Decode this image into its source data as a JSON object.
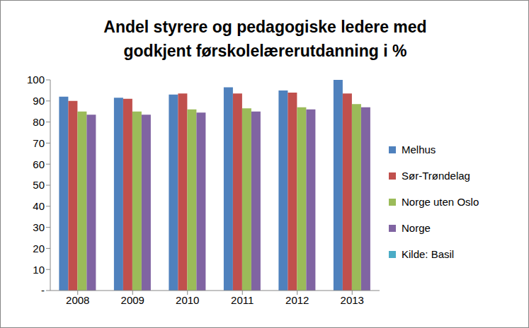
{
  "chart_data": {
    "type": "bar",
    "title": "Andel styrere og pedagogiske ledere med godkjent førskolelærerutdanning i %",
    "categories": [
      "2008",
      "2009",
      "2010",
      "2011",
      "2012",
      "2013"
    ],
    "series": [
      {
        "name": "Melhus",
        "color": "#4f81bd",
        "values": [
          92,
          91.5,
          93,
          96.5,
          95,
          100
        ]
      },
      {
        "name": "Sør-Trøndelag",
        "color": "#c0504d",
        "values": [
          90,
          91,
          93.5,
          93.5,
          94,
          93.5
        ]
      },
      {
        "name": "Norge uten Oslo",
        "color": "#9bbb59",
        "values": [
          85,
          85,
          86,
          86.5,
          87,
          88.5
        ]
      },
      {
        "name": "Norge",
        "color": "#8064a2",
        "values": [
          83.5,
          83.5,
          84.5,
          85,
          86,
          87
        ]
      },
      {
        "name": "Kilde: Basil",
        "color": "#4bacc6",
        "values": [
          null,
          null,
          null,
          null,
          null,
          null
        ]
      }
    ],
    "ylim": [
      0,
      100
    ],
    "yticks": [
      {
        "value": 0,
        "label": "-"
      },
      10,
      20,
      30,
      40,
      50,
      60,
      70,
      80,
      90,
      100
    ],
    "grid": false,
    "legend": "right"
  }
}
